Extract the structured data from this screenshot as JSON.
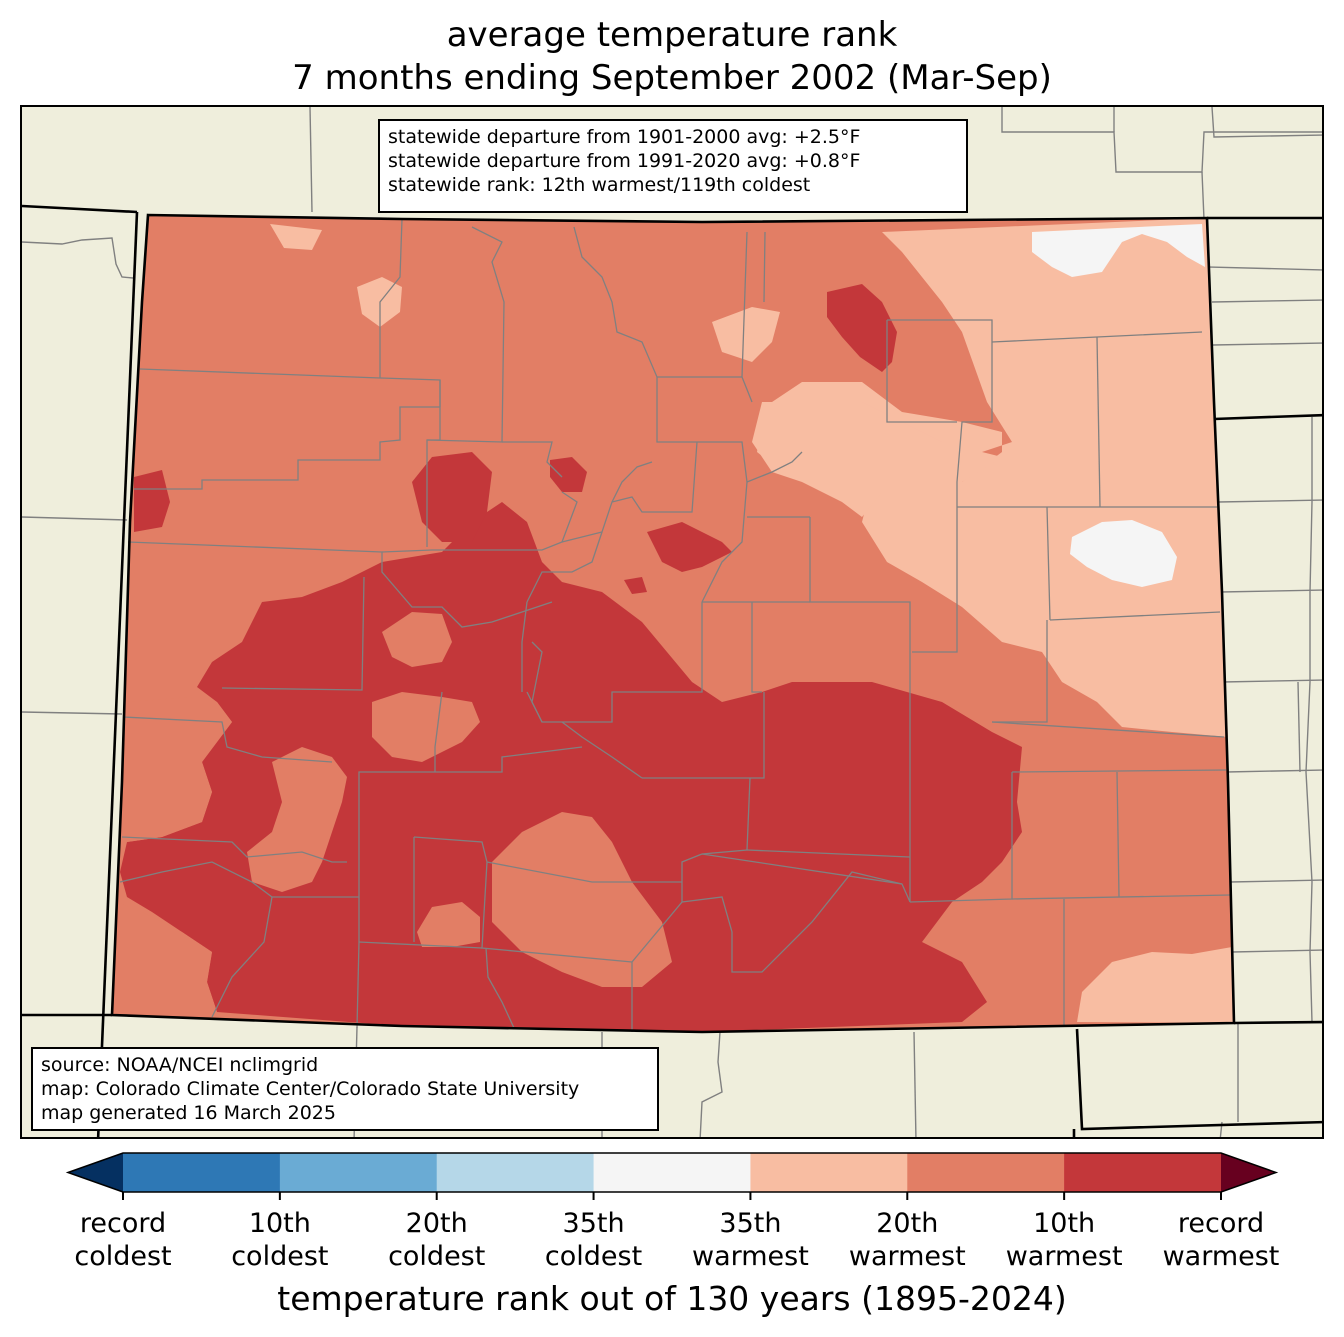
{
  "title": {
    "line1": "average temperature rank",
    "line2": "7 months ending September 2002 (Mar-Sep)"
  },
  "stats": {
    "line1": "statewide departure from 1901-2000 avg: +2.5°F",
    "line2": "statewide departure from 1991-2020 avg: +0.8°F",
    "line3": "statewide rank: 12th warmest/119th coldest"
  },
  "source": {
    "line1": "source: NOAA/NCEI nclimgrid",
    "line2": "map: Colorado Climate Center/Colorado State University",
    "line3": "map generated 16 March 2025"
  },
  "colorbar": {
    "label": "temperature rank out of 130 years (1895-2024)",
    "colors": [
      "#053061",
      "#2e78b5",
      "#6aabd4",
      "#b5d7e8",
      "#f5f5f5",
      "#f8bda2",
      "#e27e65",
      "#c3373a",
      "#67001f"
    ],
    "ticks": [
      {
        "top": "record",
        "bottom": "coldest"
      },
      {
        "top": "10th",
        "bottom": "coldest"
      },
      {
        "top": "20th",
        "bottom": "coldest"
      },
      {
        "top": "35th",
        "bottom": "coldest"
      },
      {
        "top": "35th",
        "bottom": "warmest"
      },
      {
        "top": "20th",
        "bottom": "warmest"
      },
      {
        "top": "10th",
        "bottom": "warmest"
      },
      {
        "top": "record",
        "bottom": "warmest"
      }
    ]
  },
  "map_colors": {
    "background": "#efeedc",
    "county_lines": "#808080",
    "state_lines": "#000000",
    "near_normal": "#f5f5f5",
    "warm_35th": "#f8bda2",
    "warm_20th": "#e27e65",
    "warm_10th": "#c3373a"
  }
}
